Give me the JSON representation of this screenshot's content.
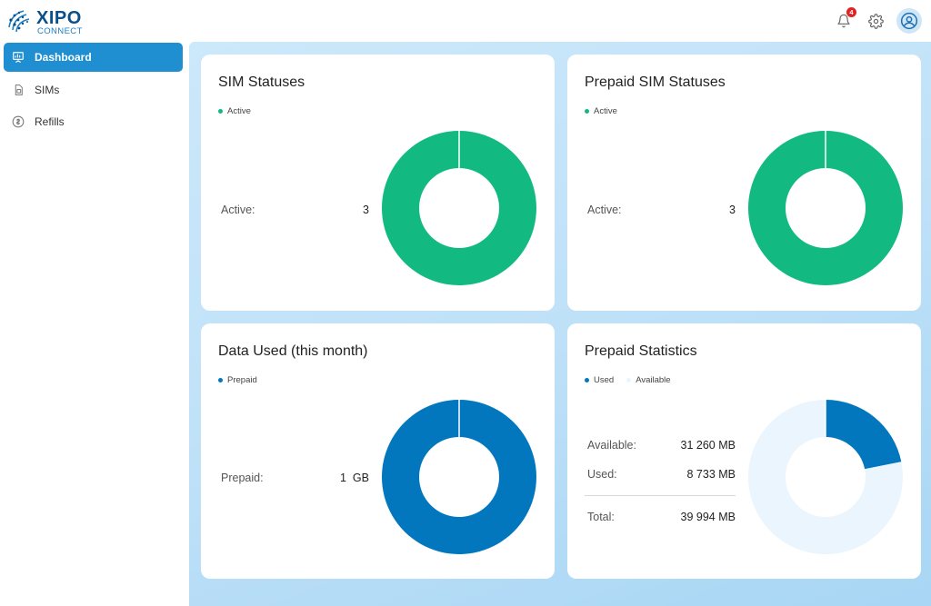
{
  "brand": {
    "name": "XIPO",
    "sub": "CONNECT"
  },
  "header": {
    "notifications_count": "4"
  },
  "sidebar": {
    "items": [
      {
        "label": "Dashboard",
        "icon": "presentation-chart-icon",
        "active": true
      },
      {
        "label": "SIMs",
        "icon": "sim-card-icon",
        "active": false
      },
      {
        "label": "Refills",
        "icon": "coin-icon",
        "active": false
      }
    ]
  },
  "colors": {
    "active": "#12b981",
    "prepaid": "#0277bd",
    "used": "#0277bd",
    "available": "#eaf5fd",
    "accent": "#1f8fd2"
  },
  "cards": [
    {
      "title": "SIM Statuses",
      "legend": [
        "Active"
      ],
      "rows": [
        {
          "label": "Active:",
          "value": "3"
        }
      ]
    },
    {
      "title": "Prepaid SIM Statuses",
      "legend": [
        "Active"
      ],
      "rows": [
        {
          "label": "Active:",
          "value": "3"
        }
      ]
    },
    {
      "title": "Data Used (this month)",
      "legend": [
        "Prepaid"
      ],
      "rows": [
        {
          "label": "Prepaid:",
          "value": "1  GB"
        }
      ]
    },
    {
      "title": "Prepaid Statistics",
      "legend": [
        "Used",
        "Available"
      ],
      "rows": [
        {
          "label": "Available:",
          "value": "31 260 MB"
        },
        {
          "label": "Used:",
          "value": "8 733 MB"
        },
        {
          "label": "Total:",
          "value": "39 994 MB"
        }
      ]
    }
  ],
  "chart_data": [
    {
      "type": "pie",
      "categories": [
        "Active"
      ],
      "values": [
        3
      ],
      "title": "SIM Statuses"
    },
    {
      "type": "pie",
      "categories": [
        "Active"
      ],
      "values": [
        3
      ],
      "title": "Prepaid SIM Statuses"
    },
    {
      "type": "pie",
      "categories": [
        "Prepaid"
      ],
      "values": [
        1
      ],
      "title": "Data Used (this month)"
    },
    {
      "type": "pie",
      "categories": [
        "Used",
        "Available"
      ],
      "values": [
        8733,
        31260
      ],
      "title": "Prepaid Statistics"
    }
  ]
}
